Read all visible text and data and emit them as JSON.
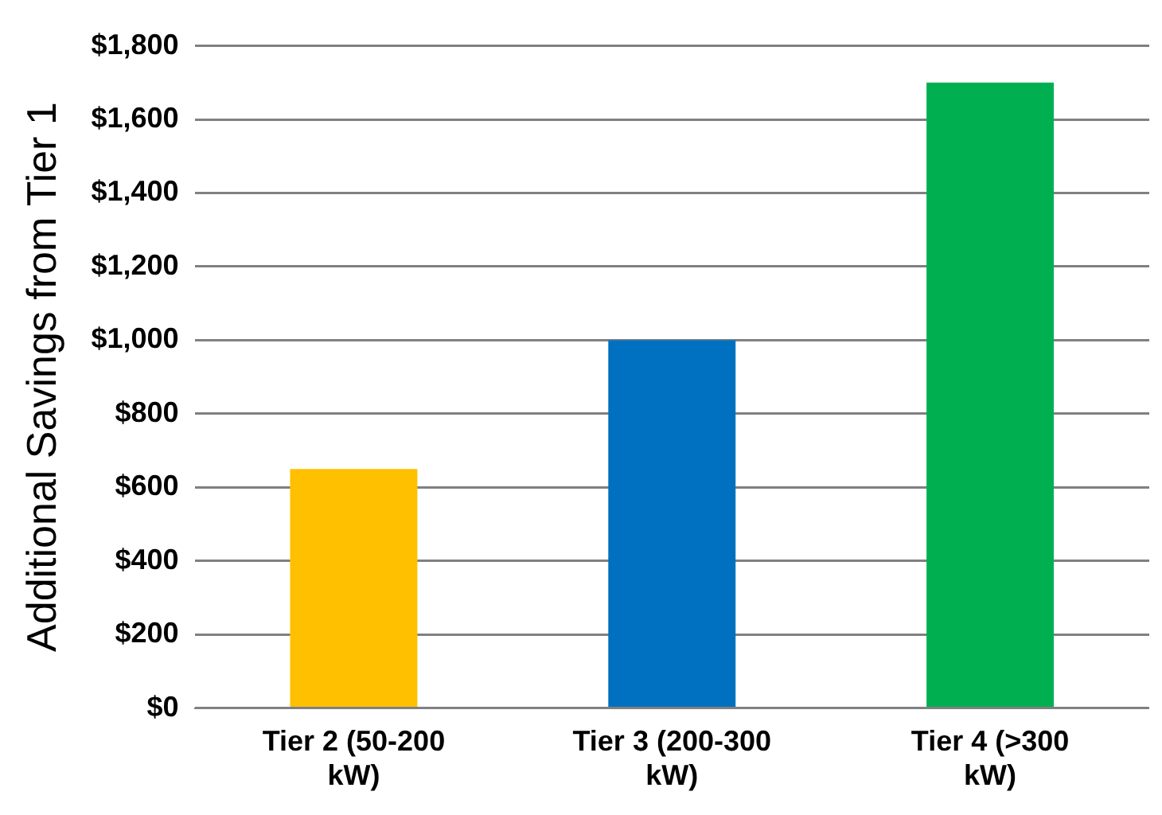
{
  "chart_data": {
    "type": "bar",
    "ylabel": "Additional Savings from Tier 1",
    "categories": [
      "Tier 2 (50-200 kW)",
      "Tier 3 (200-300 kW)",
      "Tier 4 (>300 kW)"
    ],
    "values": [
      650,
      1000,
      1700
    ],
    "colors": [
      "#ffc000",
      "#0070c0",
      "#00b050"
    ],
    "ylim": [
      0,
      1800
    ],
    "yticks": [
      {
        "value": 0,
        "label": "$0"
      },
      {
        "value": 200,
        "label": "$200"
      },
      {
        "value": 400,
        "label": "$400"
      },
      {
        "value": 600,
        "label": "$600"
      },
      {
        "value": 800,
        "label": "$800"
      },
      {
        "value": 1000,
        "label": "$1,000"
      },
      {
        "value": 1200,
        "label": "$1,200"
      },
      {
        "value": 1400,
        "label": "$1,400"
      },
      {
        "value": 1600,
        "label": "$1,600"
      },
      {
        "value": 1800,
        "label": "$1,800"
      }
    ],
    "grid": "y",
    "legend": false
  }
}
